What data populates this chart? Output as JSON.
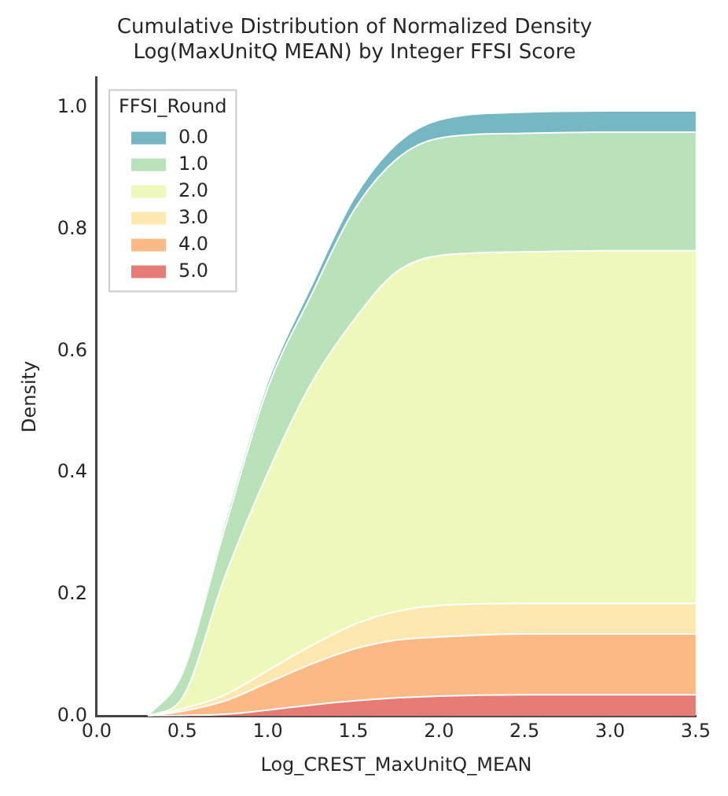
{
  "chart_data": {
    "type": "area",
    "title": "Cumulative Distribution of Normalized Density\nLog(MaxUnitQ MEAN) by Integer FFSI Score",
    "xlabel": "Log_CREST_MaxUnitQ_MEAN",
    "ylabel": "Density",
    "legend_title": "FFSI_Round",
    "legend": "top left",
    "stacked": true,
    "grid": false,
    "x": [
      0.3,
      0.5,
      0.75,
      1.0,
      1.25,
      1.5,
      1.75,
      2.0,
      2.5,
      3.0,
      3.5
    ],
    "xlim": [
      0,
      3.5
    ],
    "xticks": [
      {
        "value": 0,
        "label": "0.0"
      },
      0.5,
      {
        "value": 1,
        "label": "1.0"
      },
      1.5,
      {
        "value": 2,
        "label": "2.0"
      },
      2.5,
      {
        "value": 3,
        "label": "3.0"
      },
      3.5
    ],
    "ylim": [
      0,
      1.05
    ],
    "yticks": [
      {
        "value": 0,
        "label": "0.0"
      },
      0.2,
      0.4,
      0.6,
      0.8,
      {
        "value": 1,
        "label": "1.0"
      }
    ],
    "series": [
      {
        "name": "5.0",
        "color": "#e77c76",
        "values": [
          0,
          0.001,
          0.003,
          0.01,
          0.018,
          0.025,
          0.03,
          0.033,
          0.035,
          0.035,
          0.035
        ]
      },
      {
        "name": "4.0",
        "color": "#fbb985",
        "values": [
          0,
          0.007,
          0.022,
          0.045,
          0.067,
          0.085,
          0.095,
          0.097,
          0.1,
          0.1,
          0.1
        ]
      },
      {
        "name": "3.0",
        "color": "#fde9af",
        "values": [
          0,
          0.004,
          0.01,
          0.02,
          0.03,
          0.04,
          0.047,
          0.052,
          0.05,
          0.05,
          0.05
        ]
      },
      {
        "name": "2.0",
        "color": "#eff8bb",
        "values": [
          0,
          0.018,
          0.195,
          0.325,
          0.43,
          0.5,
          0.558,
          0.575,
          0.578,
          0.58,
          0.58
        ]
      },
      {
        "name": "1.0",
        "color": "#b9e2bb",
        "values": [
          0,
          0.04,
          0.08,
          0.14,
          0.145,
          0.18,
          0.185,
          0.193,
          0.195,
          0.195,
          0.195
        ]
      },
      {
        "name": "0.0",
        "color": "#76b7c4",
        "values": [
          0,
          0.005,
          0.01,
          0.01,
          0.015,
          0.02,
          0.025,
          0.03,
          0.035,
          0.035,
          0.035
        ]
      }
    ]
  }
}
